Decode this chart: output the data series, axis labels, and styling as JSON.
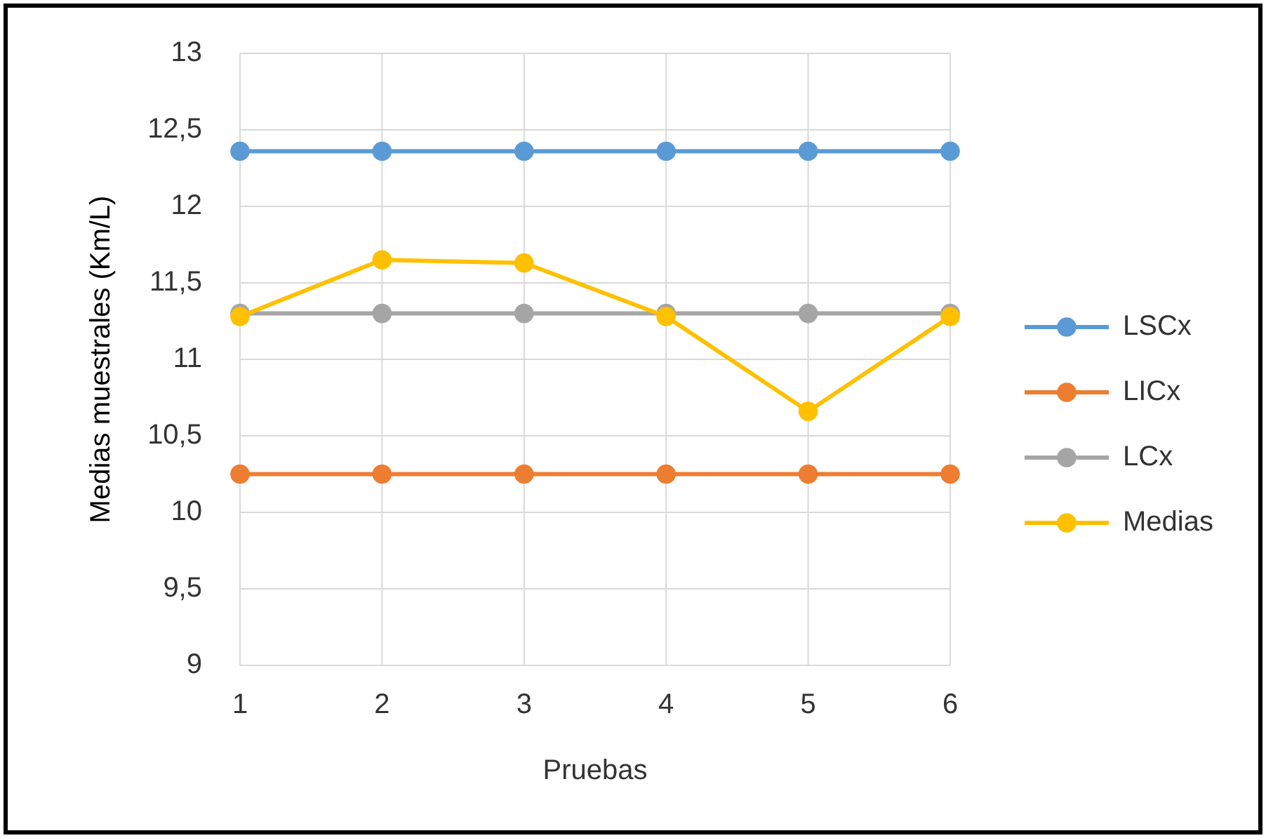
{
  "chart_data": {
    "type": "line",
    "xlabel": "Pruebas",
    "ylabel": "Medias muestrales (Km/L)",
    "x": [
      1,
      2,
      3,
      4,
      5,
      6
    ],
    "xlim": [
      1,
      6
    ],
    "xticks": [
      1,
      2,
      3,
      4,
      5,
      6
    ],
    "ylim": [
      9,
      13
    ],
    "yticks": [
      9,
      {
        "value": 9.5,
        "label": "9,5"
      },
      10,
      {
        "value": 10.5,
        "label": "10,5"
      },
      11,
      {
        "value": 11.5,
        "label": "11,5"
      },
      12,
      {
        "value": 12.5,
        "label": "12,5"
      },
      13
    ],
    "grid": true,
    "legend": "right",
    "marker": "circle",
    "line_style": "solid",
    "series": [
      {
        "name": "LSCx",
        "color": "#5b9bd5",
        "values": [
          12.36,
          12.36,
          12.36,
          12.36,
          12.36,
          12.36
        ]
      },
      {
        "name": "LICx",
        "color": "#ed7d31",
        "values": [
          10.25,
          10.25,
          10.25,
          10.25,
          10.25,
          10.25
        ]
      },
      {
        "name": "LCx",
        "color": "#a5a5a5",
        "values": [
          11.3,
          11.3,
          11.3,
          11.3,
          11.3,
          11.3
        ]
      },
      {
        "name": "Medias",
        "color": "#ffc000",
        "values": [
          11.28,
          11.65,
          11.63,
          11.28,
          10.66,
          11.28
        ]
      }
    ]
  }
}
